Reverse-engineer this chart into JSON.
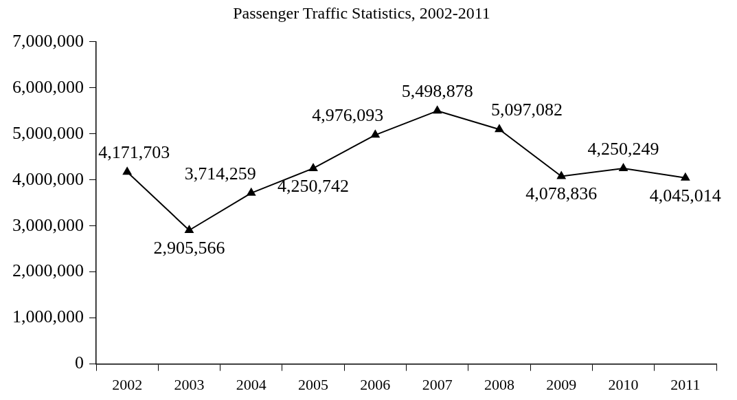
{
  "chart_data": {
    "type": "line",
    "title": "Passenger Traffic Statistics, 2002-2011",
    "categories": [
      "2002",
      "2003",
      "2004",
      "2005",
      "2006",
      "2007",
      "2008",
      "2009",
      "2010",
      "2011"
    ],
    "series": [
      {
        "color": "#000000",
        "values": [
          4171703,
          2905566,
          3714259,
          4250742,
          4976093,
          5498878,
          5097082,
          4078836,
          4250249,
          4045014
        ],
        "value_labels": [
          "4,171,703",
          "2,905,566",
          "3,714,259",
          "4,250,742",
          "4,976,093",
          "5,498,878",
          "5,097,082",
          "4,078,836",
          "4,250,249",
          "4,045,014"
        ]
      }
    ],
    "ylim": [
      0,
      7000000
    ],
    "yticks": [
      {
        "value": 0,
        "label": "0"
      },
      {
        "value": 1000000,
        "label": "1,000,000"
      },
      {
        "value": 2000000,
        "label": "2,000,000"
      },
      {
        "value": 3000000,
        "label": "3,000,000"
      },
      {
        "value": 4000000,
        "label": "4,000,000"
      },
      {
        "value": 5000000,
        "label": "5,000,000"
      },
      {
        "value": 6000000,
        "label": "6,000,000"
      },
      {
        "value": 7000000,
        "label": "7,000,000"
      }
    ],
    "grid": false,
    "legend": false,
    "marker": "triangle",
    "line_style": "solid"
  }
}
